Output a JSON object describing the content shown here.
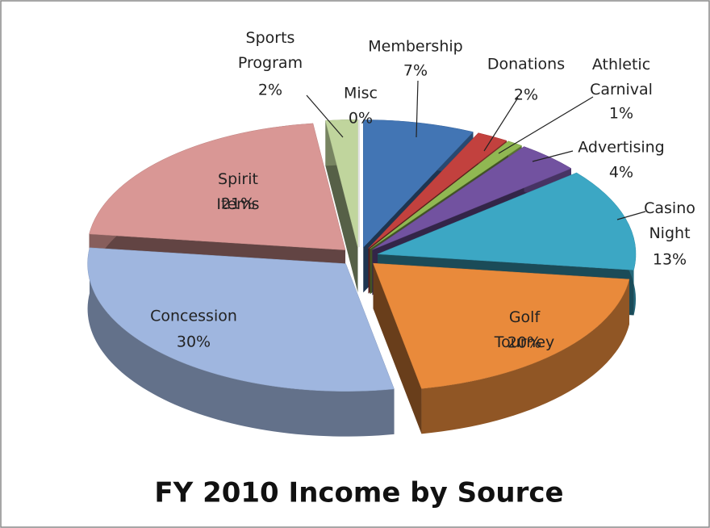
{
  "chart_data": {
    "type": "pie",
    "title": "FY 2010 Income by Source",
    "categories": [
      "Membership",
      "Donations",
      "Athletic Carnival",
      "Advertising",
      "Casino Night",
      "Golf Tourney",
      "Concession",
      "Spirit Items",
      "Sports Program",
      "Misc"
    ],
    "values": [
      7,
      2,
      1,
      4,
      13,
      20,
      30,
      21,
      2,
      0
    ],
    "value_labels": [
      "7%",
      "2%",
      "1%",
      "4%",
      "13%",
      "20%",
      "30%",
      "21%",
      "2%",
      "0%"
    ],
    "colors": [
      "#4275b4",
      "#c2413e",
      "#90b852",
      "#7252a0",
      "#3ca7c4",
      "#e98a3b",
      "#9fb6df",
      "#d99795",
      "#c0d59d",
      "#c8c8c8"
    ]
  }
}
